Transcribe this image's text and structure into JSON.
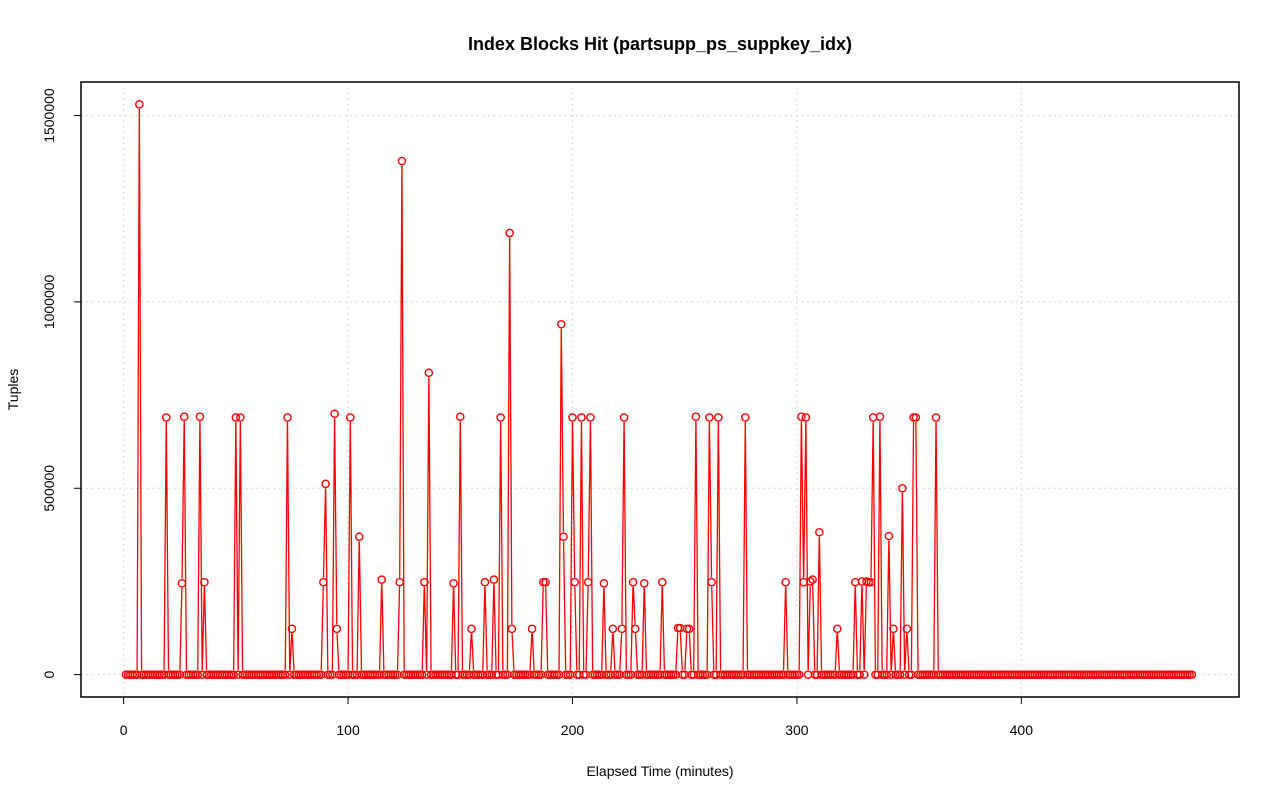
{
  "chart_data": {
    "type": "line",
    "title": "Index Blocks Hit (partsupp_ps_suppkey_idx)",
    "xlabel": "Elapsed Time (minutes)",
    "ylabel": "Tuples",
    "xlim": [
      -19,
      497
    ],
    "ylim": [
      -60000,
      1590000
    ],
    "x_ticks": [
      0,
      100,
      200,
      300,
      400
    ],
    "x_tick_labels": [
      "0",
      "100",
      "200",
      "300",
      "400"
    ],
    "y_ticks": [
      0,
      500000,
      1000000,
      1500000
    ],
    "y_tick_labels": [
      "0",
      "500000",
      "1000000",
      "1500000"
    ],
    "grid": true,
    "legend": "none",
    "series_color": "#ff0000",
    "x_range": [
      1,
      476
    ],
    "default_y": 0,
    "spikes": [
      [
        7,
        1530000
      ],
      [
        19,
        690000
      ],
      [
        26,
        245000
      ],
      [
        27,
        692000
      ],
      [
        34,
        692000
      ],
      [
        36,
        248000
      ],
      [
        50,
        690000
      ],
      [
        52,
        690000
      ],
      [
        73,
        690000
      ],
      [
        75,
        123000
      ],
      [
        89,
        248000
      ],
      [
        90,
        512000
      ],
      [
        94,
        700000
      ],
      [
        95,
        123000
      ],
      [
        101,
        690000
      ],
      [
        105,
        370000
      ],
      [
        115,
        255000
      ],
      [
        123,
        248000
      ],
      [
        124,
        1378000
      ],
      [
        134,
        248000
      ],
      [
        136,
        810000
      ],
      [
        147,
        245000
      ],
      [
        150,
        692000
      ],
      [
        155,
        123000
      ],
      [
        161,
        248000
      ],
      [
        165,
        255000
      ],
      [
        168,
        690000
      ],
      [
        172,
        1185000
      ],
      [
        173,
        123000
      ],
      [
        182,
        123000
      ],
      [
        187,
        248000
      ],
      [
        188,
        248000
      ],
      [
        195,
        940000
      ],
      [
        196,
        370000
      ],
      [
        200,
        690000
      ],
      [
        201,
        248000
      ],
      [
        204,
        690000
      ],
      [
        207,
        248000
      ],
      [
        208,
        690000
      ],
      [
        214,
        245000
      ],
      [
        218,
        123000
      ],
      [
        222,
        123000
      ],
      [
        223,
        690000
      ],
      [
        227,
        248000
      ],
      [
        228,
        123000
      ],
      [
        232,
        245000
      ],
      [
        240,
        248000
      ],
      [
        247,
        125000
      ],
      [
        248,
        125000
      ],
      [
        251,
        123000
      ],
      [
        252,
        123000
      ],
      [
        255,
        692000
      ],
      [
        261,
        690000
      ],
      [
        262,
        248000
      ],
      [
        265,
        690000
      ],
      [
        277,
        690000
      ],
      [
        295,
        248000
      ],
      [
        302,
        692000
      ],
      [
        303,
        248000
      ],
      [
        304,
        690000
      ],
      [
        306,
        250000
      ],
      [
        307,
        255000
      ],
      [
        310,
        382000
      ],
      [
        318,
        123000
      ],
      [
        326,
        248000
      ],
      [
        329,
        250000
      ],
      [
        331,
        250000
      ],
      [
        332,
        248000
      ],
      [
        333,
        248000
      ],
      [
        334,
        690000
      ],
      [
        337,
        692000
      ],
      [
        341,
        372000
      ],
      [
        343,
        123000
      ],
      [
        347,
        500000
      ],
      [
        349,
        123000
      ],
      [
        352,
        690000
      ],
      [
        353,
        690000
      ],
      [
        362,
        690000
      ]
    ]
  }
}
